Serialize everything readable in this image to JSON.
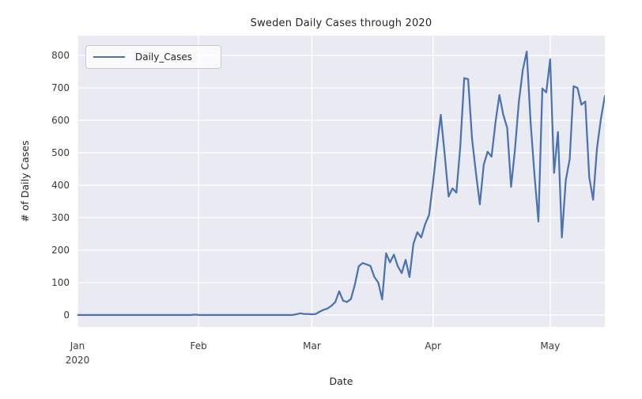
{
  "figure": {
    "title": "Sweden Daily Cases through 2020",
    "xlabel": "Date",
    "ylabel": "# of Daily Cases",
    "legend_label": "Daily_Cases"
  },
  "chart_data": {
    "type": "line",
    "title": "Sweden Daily Cases through 2020",
    "xlabel": "Date",
    "ylabel": "# of Daily Cases",
    "grid": true,
    "background_color": "#eaeaf2",
    "gridline_color": "#ffffff",
    "legend_position": "upper left",
    "y_ticks": [
      0,
      100,
      200,
      300,
      400,
      500,
      600,
      700,
      800
    ],
    "ylim": [
      -37,
      861
    ],
    "x_ticks": [
      {
        "label": "Jan",
        "sublabel": "2020",
        "day": 0
      },
      {
        "label": "Feb",
        "sublabel": "",
        "day": 31
      },
      {
        "label": "Mar",
        "sublabel": "",
        "day": 60
      },
      {
        "label": "Apr",
        "sublabel": "",
        "day": 91
      },
      {
        "label": "May",
        "sublabel": "",
        "day": 121
      }
    ],
    "series": [
      {
        "name": "Daily_Cases",
        "color": "#4c72b0",
        "freq": "daily",
        "x_start_date": "2020-01-01",
        "x_end_date": "2020-05-15",
        "values": [
          0,
          0,
          0,
          0,
          0,
          0,
          0,
          0,
          0,
          0,
          0,
          0,
          0,
          0,
          0,
          0,
          0,
          0,
          0,
          0,
          0,
          0,
          0,
          0,
          0,
          0,
          0,
          0,
          0,
          0,
          1,
          0,
          0,
          0,
          0,
          0,
          0,
          0,
          0,
          0,
          0,
          0,
          0,
          0,
          0,
          0,
          0,
          0,
          0,
          0,
          0,
          0,
          0,
          0,
          0,
          0,
          2,
          5,
          3,
          3,
          2,
          3,
          10,
          16,
          20,
          28,
          40,
          73,
          44,
          40,
          49,
          93,
          150,
          160,
          156,
          151,
          117,
          100,
          48,
          190,
          162,
          186,
          150,
          129,
          170,
          117,
          219,
          255,
          239,
          280,
          308,
          406,
          515,
          617,
          495,
          365,
          390,
          377,
          520,
          730,
          727,
          544,
          438,
          341,
          463,
          503,
          488,
          593,
          678,
          617,
          577,
          395,
          511,
          658,
          755,
          812,
          593,
          430,
          288,
          698,
          686,
          788,
          438,
          564,
          239,
          415,
          480,
          705,
          700,
          648,
          658,
          425,
          355,
          515,
          605,
          675
        ]
      }
    ]
  }
}
